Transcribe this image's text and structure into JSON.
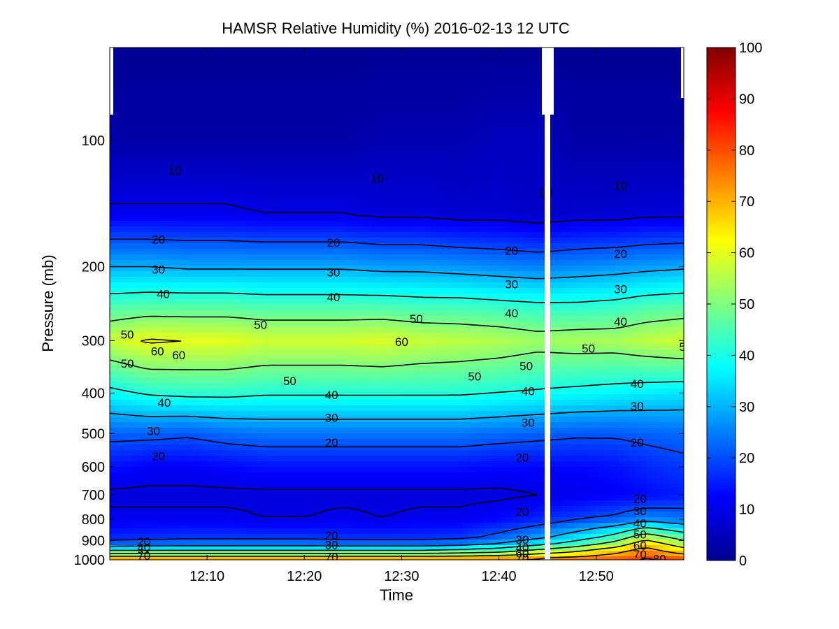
{
  "chart_data": {
    "type": "heatmap",
    "title": "HAMSR  Relative Humidity (%) 2016-02-13 12 UTC",
    "xlabel": "Time",
    "ylabel": "Pressure (mb)",
    "x_range": [
      "12:00",
      "12:59"
    ],
    "y_range": [
      1000,
      60
    ],
    "y_scale": "log",
    "y_reversed": true,
    "x_ticks": [
      "12:10",
      "12:20",
      "12:30",
      "12:40",
      "12:50"
    ],
    "y_ticks": [
      100,
      200,
      300,
      400,
      500,
      600,
      700,
      800,
      900,
      1000
    ],
    "colorbar": {
      "range": [
        0,
        100
      ],
      "ticks": [
        0,
        10,
        20,
        30,
        40,
        50,
        60,
        70,
        80,
        90,
        100
      ],
      "colormap": "jet"
    },
    "data_gap": {
      "start": "12:45.5",
      "end": "12:46",
      "note": ""
    },
    "x_values_minutes": [
      0,
      4,
      8,
      12,
      16,
      20,
      24,
      28,
      32,
      36,
      40,
      44,
      48,
      52,
      55,
      59
    ],
    "pressure_levels": [
      60,
      100,
      150,
      200,
      250,
      300,
      400,
      500,
      600,
      700,
      800,
      900,
      950,
      1000
    ],
    "rh_values": [
      [
        2,
        2,
        2,
        2,
        2,
        2,
        2,
        2,
        2,
        2,
        2,
        2,
        2,
        2,
        2,
        2
      ],
      [
        4,
        4,
        4,
        4,
        4,
        4,
        4,
        5,
        5,
        5,
        6,
        6,
        4,
        4,
        4,
        4
      ],
      [
        11,
        11,
        11,
        11,
        10,
        10,
        10,
        9,
        9,
        8,
        8,
        7,
        8,
        8,
        9,
        9
      ],
      [
        30,
        30,
        29,
        29,
        29,
        29,
        29,
        28,
        28,
        27,
        26,
        25,
        26,
        27,
        28,
        29
      ],
      [
        45,
        46,
        46,
        46,
        45,
        45,
        45,
        45,
        44,
        44,
        43,
        42,
        42,
        43,
        45,
        46
      ],
      [
        57,
        61,
        60,
        60,
        58,
        58,
        58,
        59,
        57,
        56,
        55,
        53,
        54,
        54,
        56,
        58
      ],
      [
        38,
        41,
        42,
        42,
        41,
        41,
        41,
        41,
        41,
        41,
        40,
        39,
        38,
        37,
        36,
        35
      ],
      [
        22,
        22,
        21,
        23,
        24,
        24,
        24,
        24,
        24,
        24,
        23,
        22,
        21,
        21,
        22,
        23
      ],
      [
        14,
        12,
        12,
        13,
        14,
        14,
        14,
        14,
        14,
        14,
        13,
        13,
        13,
        14,
        16,
        18
      ],
      [
        9,
        9,
        9,
        9,
        9,
        9,
        9,
        9,
        9,
        9,
        9,
        10,
        11,
        12,
        13,
        15
      ],
      [
        11,
        11,
        11,
        11,
        10,
        10,
        11,
        10,
        11,
        11,
        13,
        16,
        19,
        22,
        26,
        24
      ],
      [
        17,
        18,
        19,
        19,
        19,
        19,
        18,
        18,
        18,
        19,
        24,
        30,
        38,
        48,
        62,
        50
      ],
      [
        40,
        40,
        40,
        40,
        40,
        40,
        40,
        40,
        40,
        42,
        45,
        52,
        58,
        66,
        74,
        64
      ],
      [
        72,
        72,
        72,
        72,
        72,
        72,
        72,
        72,
        72,
        72,
        73,
        74,
        76,
        78,
        82,
        80
      ]
    ],
    "contour_levels": [
      10,
      20,
      30,
      40,
      50,
      60,
      70,
      80
    ],
    "contour_labels": [
      {
        "text": "10",
        "t": 6.7,
        "p": 118
      },
      {
        "text": "10",
        "t": 27.5,
        "p": 123
      },
      {
        "text": "10",
        "t": 44.8,
        "p": 133
      },
      {
        "text": "10",
        "t": 52.5,
        "p": 128
      },
      {
        "text": "20",
        "t": 5,
        "p": 172
      },
      {
        "text": "20",
        "t": 23,
        "p": 175
      },
      {
        "text": "20",
        "t": 41.3,
        "p": 183
      },
      {
        "text": "20",
        "t": 52.5,
        "p": 186
      },
      {
        "text": "30",
        "t": 5,
        "p": 203
      },
      {
        "text": "30",
        "t": 23,
        "p": 206
      },
      {
        "text": "30",
        "t": 41.3,
        "p": 220
      },
      {
        "text": "30",
        "t": 52.5,
        "p": 226
      },
      {
        "text": "40",
        "t": 5.5,
        "p": 232
      },
      {
        "text": "40",
        "t": 23,
        "p": 236
      },
      {
        "text": "40",
        "t": 41.3,
        "p": 258
      },
      {
        "text": "40",
        "t": 52.5,
        "p": 270
      },
      {
        "text": "50",
        "t": 1.8,
        "p": 290
      },
      {
        "text": "50",
        "t": 15.5,
        "p": 275
      },
      {
        "text": "50",
        "t": 31.5,
        "p": 266
      },
      {
        "text": "50",
        "t": 1.8,
        "p": 340
      },
      {
        "text": "50",
        "t": 18.5,
        "p": 374
      },
      {
        "text": "50",
        "t": 37.5,
        "p": 365
      },
      {
        "text": "50",
        "t": 42.8,
        "p": 345
      },
      {
        "text": "50",
        "t": 49.2,
        "p": 313
      },
      {
        "text": "50",
        "t": 59.2,
        "p": 310
      },
      {
        "text": "60",
        "t": 4.9,
        "p": 318
      },
      {
        "text": "60",
        "t": 7.1,
        "p": 325
      },
      {
        "text": "60",
        "t": 30,
        "p": 302
      },
      {
        "text": "40",
        "t": 5.6,
        "p": 422
      },
      {
        "text": "40",
        "t": 22.8,
        "p": 404
      },
      {
        "text": "40",
        "t": 43,
        "p": 396
      },
      {
        "text": "40",
        "t": 54.2,
        "p": 380
      },
      {
        "text": "30",
        "t": 4.5,
        "p": 493
      },
      {
        "text": "30",
        "t": 22.8,
        "p": 458
      },
      {
        "text": "30",
        "t": 43,
        "p": 470
      },
      {
        "text": "30",
        "t": 54.2,
        "p": 430
      },
      {
        "text": "20",
        "t": 5,
        "p": 565
      },
      {
        "text": "20",
        "t": 22.8,
        "p": 525
      },
      {
        "text": "20",
        "t": 42.4,
        "p": 570
      },
      {
        "text": "20",
        "t": 54.2,
        "p": 525
      },
      {
        "text": "20",
        "t": 42.4,
        "p": 768
      },
      {
        "text": "20",
        "t": 54.5,
        "p": 715
      },
      {
        "text": "30",
        "t": 54.5,
        "p": 765
      },
      {
        "text": "40",
        "t": 54.5,
        "p": 818
      },
      {
        "text": "50",
        "t": 54.5,
        "p": 870
      },
      {
        "text": "60",
        "t": 54.5,
        "p": 925
      },
      {
        "text": "70",
        "t": 54.5,
        "p": 970
      },
      {
        "text": "80",
        "t": 56.5,
        "p": 995
      },
      {
        "text": "20",
        "t": 22.8,
        "p": 875
      },
      {
        "text": "30",
        "t": 22.8,
        "p": 920
      },
      {
        "text": "20",
        "t": 3.5,
        "p": 905
      },
      {
        "text": "40",
        "t": 3.5,
        "p": 935
      },
      {
        "text": "70",
        "t": 3.5,
        "p": 978
      },
      {
        "text": "70",
        "t": 22.8,
        "p": 985
      },
      {
        "text": "30",
        "t": 42.4,
        "p": 895
      },
      {
        "text": "40",
        "t": 42.4,
        "p": 935
      },
      {
        "text": "60",
        "t": 42.4,
        "p": 965
      },
      {
        "text": "70",
        "t": 42.4,
        "p": 990
      }
    ]
  }
}
